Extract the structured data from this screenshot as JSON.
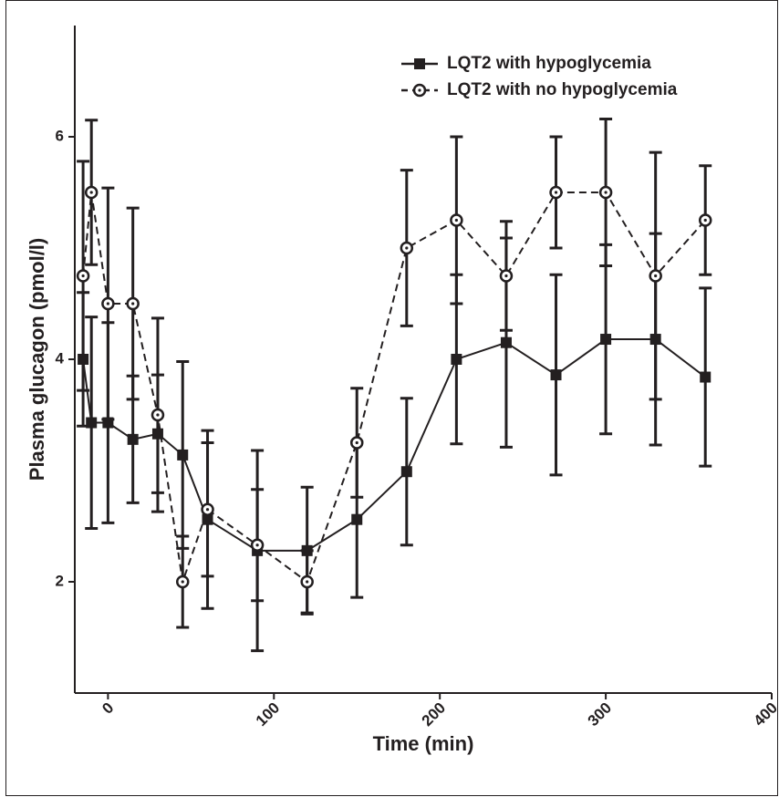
{
  "chart_data": {
    "type": "line",
    "x_label": "Time (min)",
    "y_label": "Plasma glucagon (pmol/l)",
    "x": [
      -15,
      -10,
      0,
      15,
      30,
      45,
      60,
      90,
      120,
      150,
      180,
      210,
      240,
      270,
      300,
      330,
      360
    ],
    "xlim": [
      -20,
      400
    ],
    "xticks": [
      0,
      100,
      200,
      300,
      400
    ],
    "ylim": [
      1,
      7
    ],
    "yticks": [
      2,
      4,
      6
    ],
    "legend": "upper right",
    "series": [
      {
        "name": "LQT2 with hypoglycemia",
        "color": "#231f20",
        "marker": "square",
        "dash": "solid",
        "values": [
          4.0,
          3.43,
          3.43,
          3.28,
          3.33,
          3.14,
          2.56,
          2.28,
          2.28,
          2.56,
          2.99,
          4.0,
          4.15,
          3.86,
          4.18,
          4.18,
          3.84
        ],
        "errors": [
          0.6,
          0.95,
          0.9,
          0.57,
          0.53,
          0.84,
          0.8,
          0.9,
          0.57,
          0.7,
          0.66,
          0.76,
          0.94,
          0.9,
          0.85,
          0.95,
          0.8
        ]
      },
      {
        "name": "LQT2 with no hypoglycemia",
        "color": "#231f20",
        "marker": "circle",
        "dash": "dashed",
        "values": [
          4.75,
          5.5,
          4.5,
          4.5,
          3.5,
          2.0,
          2.65,
          2.33,
          2.0,
          3.25,
          5.0,
          5.25,
          4.75,
          5.5,
          5.5,
          4.75,
          5.25
        ],
        "errors": [
          1.03,
          0.65,
          1.04,
          0.86,
          0.87,
          0.41,
          0.6,
          0.5,
          0.28,
          0.49,
          0.7,
          0.75,
          0.49,
          0.5,
          0.66,
          1.11,
          0.49
        ]
      }
    ]
  }
}
